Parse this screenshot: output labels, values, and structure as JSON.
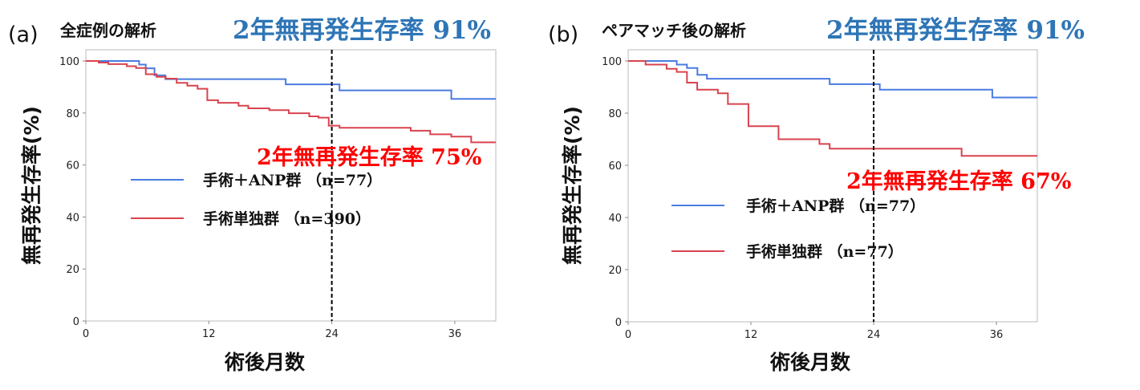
{
  "chart_data": [
    {
      "type": "line",
      "step": true,
      "panel_label": "(a)",
      "subtitle": "全症例の解析",
      "headline": "2年無再発生存率 91%",
      "annotation": "2年無再発生存率 75%",
      "xlabel": "術後月数",
      "ylabel": "無再発生存率(%)",
      "xlim": [
        0,
        40
      ],
      "ylim": [
        0,
        100
      ],
      "xticks": [
        0,
        12,
        24,
        36
      ],
      "yticks": [
        0,
        20,
        40,
        60,
        80,
        100
      ],
      "reference_line_x": 24,
      "grid": false,
      "legend_placement": "center-left",
      "series": [
        {
          "name": "手術＋ANP群 （n=77）",
          "color": "#4a7be0",
          "x": [
            0,
            5.2,
            5.85,
            6.7,
            7.76,
            19.5,
            24.75,
            35.66,
            40
          ],
          "y": [
            100,
            98.6,
            97.2,
            94.5,
            93.0,
            91.0,
            88.7,
            85.4,
            85.4
          ]
        },
        {
          "name": "手術単独群 （n=390）",
          "color": "#d9434f",
          "x": [
            0,
            1.25,
            2.2,
            4.0,
            4.9,
            5.85,
            6.9,
            7.8,
            8.86,
            9.9,
            10.9,
            11.85,
            12.9,
            14.9,
            15.85,
            17.9,
            19.8,
            21.8,
            22.7,
            23.7,
            24.75,
            31.7,
            33.6,
            35.66,
            37.6,
            40
          ],
          "y": [
            100,
            99.4,
            98.8,
            98.0,
            97.3,
            94.9,
            93.9,
            93.2,
            91.6,
            90.5,
            89.3,
            84.9,
            83.9,
            82.8,
            81.8,
            81.1,
            79.9,
            78.7,
            78.2,
            75.1,
            74.3,
            73.2,
            71.8,
            70.9,
            68.7,
            68.7
          ]
        }
      ]
    },
    {
      "type": "line",
      "step": true,
      "panel_label": "(b)",
      "subtitle": "ペアマッチ後の解析",
      "headline": "2年無再発生存率 91%",
      "annotation": "2年無再発生存率 67%",
      "xlabel": "術後月数",
      "ylabel": "無再発生存率(%)",
      "xlim": [
        0,
        40
      ],
      "ylim": [
        0,
        100
      ],
      "xticks": [
        0,
        12,
        24,
        36
      ],
      "yticks": [
        0,
        20,
        40,
        60,
        80,
        100
      ],
      "reference_line_x": 24,
      "grid": false,
      "legend_placement": "center-left",
      "series": [
        {
          "name": "手術＋ANP群 （n=77）",
          "color": "#4a7be0",
          "x": [
            0,
            4.75,
            5.75,
            6.77,
            7.7,
            19.7,
            24.6,
            35.6,
            40
          ],
          "y": [
            100,
            98.6,
            97.3,
            94.7,
            93.2,
            91.1,
            89.0,
            86.0,
            86.0
          ]
        },
        {
          "name": "手術単独群 （n=77）",
          "color": "#d9434f",
          "x": [
            0,
            1.7,
            3.76,
            4.75,
            5.75,
            6.75,
            8.77,
            9.75,
            11.76,
            14.7,
            18.7,
            19.7,
            32.6,
            40
          ],
          "y": [
            100,
            98.6,
            97.0,
            95.8,
            91.7,
            89.0,
            87.6,
            83.5,
            75.0,
            70.0,
            68.2,
            66.4,
            63.6,
            63.6
          ]
        }
      ]
    }
  ]
}
